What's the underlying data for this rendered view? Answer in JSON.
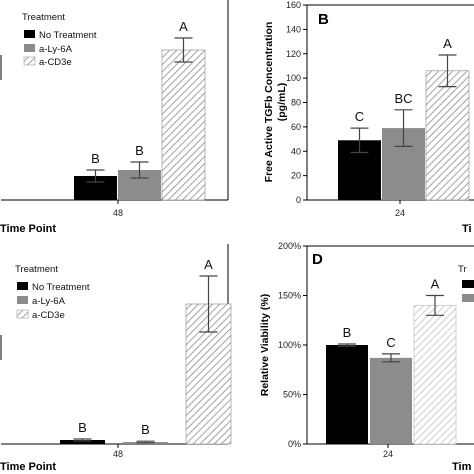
{
  "colors": {
    "no_treatment": "#000000",
    "ly6a": "#8c8c8c",
    "cd3e_stripe": "#9a9a9a",
    "background": "#ffffff"
  },
  "chart_data": [
    {
      "panel": "",
      "type": "bar",
      "categories": [
        "48"
      ],
      "xlabel": "Time Point",
      "ylabel": "",
      "legend_title": "Treatment",
      "legend_placement": "top-left",
      "series": [
        {
          "name": "No Treatment",
          "values": [
            0.12
          ],
          "error": [
            0.03
          ],
          "letter": "B"
        },
        {
          "name": "a-Ly-6A",
          "values": [
            0.15
          ],
          "error": [
            0.04
          ],
          "letter": "B"
        },
        {
          "name": "a-CD3e",
          "values": [
            0.75
          ],
          "error": [
            0.06
          ],
          "letter": "A"
        }
      ],
      "ylim": [
        0,
        1
      ],
      "note": ""
    },
    {
      "panel": "B",
      "type": "bar",
      "categories": [
        "24"
      ],
      "xlabel": "Time Point",
      "ylabel": "Free Active TGFb Concentration (pg/mL)",
      "yticks": [
        0,
        20,
        40,
        60,
        80,
        100,
        120,
        140,
        160
      ],
      "ylim": [
        0,
        160
      ],
      "series": [
        {
          "name": "No Treatment",
          "values": [
            49
          ],
          "error": [
            10
          ],
          "letter": "C"
        },
        {
          "name": "a-Ly-6A",
          "values": [
            59
          ],
          "error": [
            15
          ],
          "letter": "BC"
        },
        {
          "name": "a-CD3e",
          "values": [
            106
          ],
          "error": [
            13
          ],
          "letter": "A"
        }
      ]
    },
    {
      "panel": "",
      "type": "bar",
      "categories": [
        "48"
      ],
      "xlabel": "Time Point",
      "ylabel": "",
      "legend_title": "Treatment",
      "legend_placement": "top-left",
      "series": [
        {
          "name": "No Treatment",
          "values": [
            0.02
          ],
          "error": [
            0.005
          ],
          "letter": "B"
        },
        {
          "name": "a-Ly-6A",
          "values": [
            0.01
          ],
          "error": [
            0.004
          ],
          "letter": "B"
        },
        {
          "name": "a-CD3e",
          "values": [
            0.7
          ],
          "error": [
            0.14
          ],
          "letter": "A"
        }
      ],
      "ylim": [
        0,
        1
      ]
    },
    {
      "panel": "D",
      "type": "bar",
      "categories": [
        "24"
      ],
      "xlabel": "Time Point",
      "ylabel": "Relative Viability (%)",
      "yticks": [
        "0%",
        "50%",
        "100%",
        "150%",
        "200%"
      ],
      "ylim": [
        0,
        200
      ],
      "legend_title_partial": "Tr",
      "series": [
        {
          "name": "No Treatment",
          "values": [
            100
          ],
          "error": [
            1
          ],
          "letter": "B"
        },
        {
          "name": "a-Ly-6A",
          "values": [
            87
          ],
          "error": [
            4
          ],
          "letter": "C"
        },
        {
          "name": "a-CD3e",
          "values": [
            140
          ],
          "error": [
            10
          ],
          "letter": "A"
        }
      ]
    }
  ],
  "labels": {
    "time_point_a": "Time Point",
    "time_point_c": "Time Point",
    "time_point_b_partial": "Ti",
    "time_point_d_partial": "Tim",
    "cat_a": "48",
    "cat_b": "24",
    "cat_c": "48",
    "cat_d": "24",
    "panel_b": "B",
    "panel_d": "D",
    "legend_title": "Treatment",
    "legend_no": "No Treatment",
    "legend_ly": "a-Ly-6A",
    "legend_cd": "a-CD3e",
    "ylabel_b_line1": "Free Active TGFb Concentration",
    "ylabel_b_line2": "(pg/mL)",
    "ylabel_d": "Relative Viability (%)",
    "legend_d_partial": "Tr"
  }
}
